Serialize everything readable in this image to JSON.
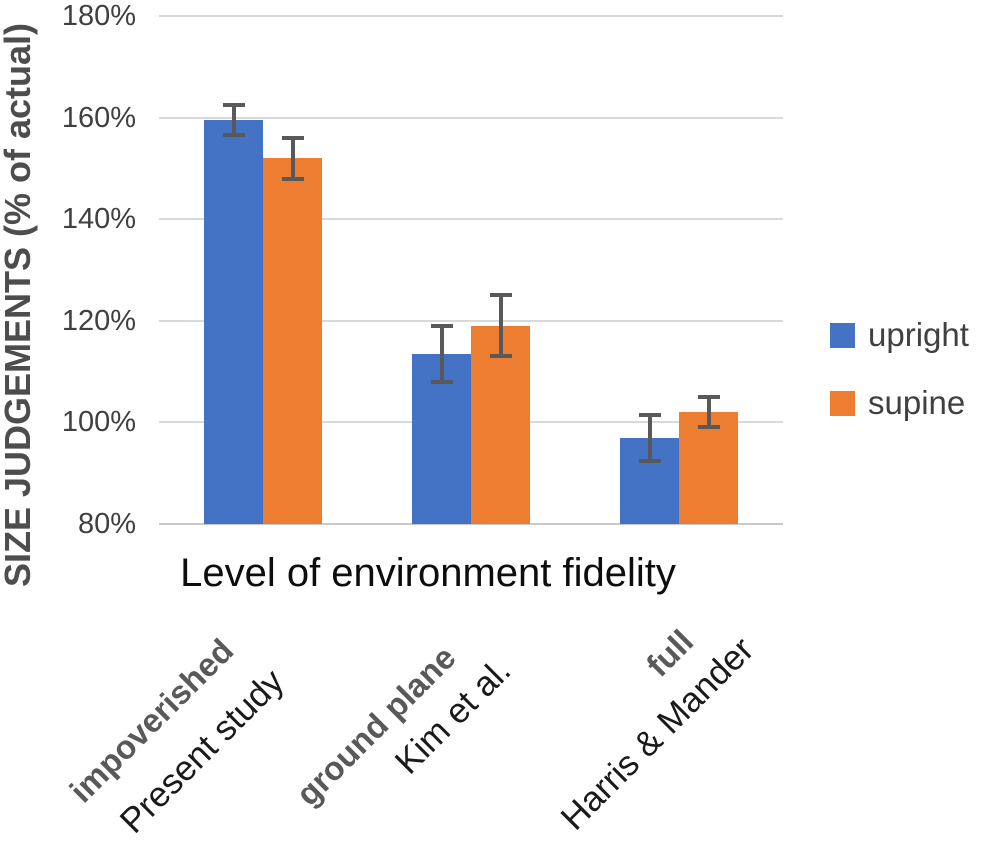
{
  "chart_data": {
    "type": "bar",
    "title": "",
    "xlabel": "Level of environment fidelity",
    "ylabel": "SIZE JUDGEMENTS (% of actual)",
    "ylim": [
      80,
      180
    ],
    "ytick_step": 20,
    "ytick_labels": [
      "80%",
      "100%",
      "120%",
      "140%",
      "160%",
      "180%"
    ],
    "grid": "horizontal",
    "legend_position": "right",
    "categories": [
      {
        "level": "impoverished",
        "study": "Present study"
      },
      {
        "level": "ground plane",
        "study": "Kim et al."
      },
      {
        "level": "full",
        "study": "Harris & Mander"
      }
    ],
    "series": [
      {
        "name": "upright",
        "color": "#4472C4",
        "values": [
          159.5,
          113.5,
          97.0
        ],
        "error_bars": [
          3.0,
          5.5,
          4.5
        ]
      },
      {
        "name": "supine",
        "color": "#ED7D31",
        "values": [
          152.0,
          119.0,
          102.0
        ],
        "error_bars": [
          4.0,
          6.0,
          3.0
        ]
      }
    ],
    "error_bar_color": "#595959",
    "gridline_color": "#d9d9d9"
  }
}
